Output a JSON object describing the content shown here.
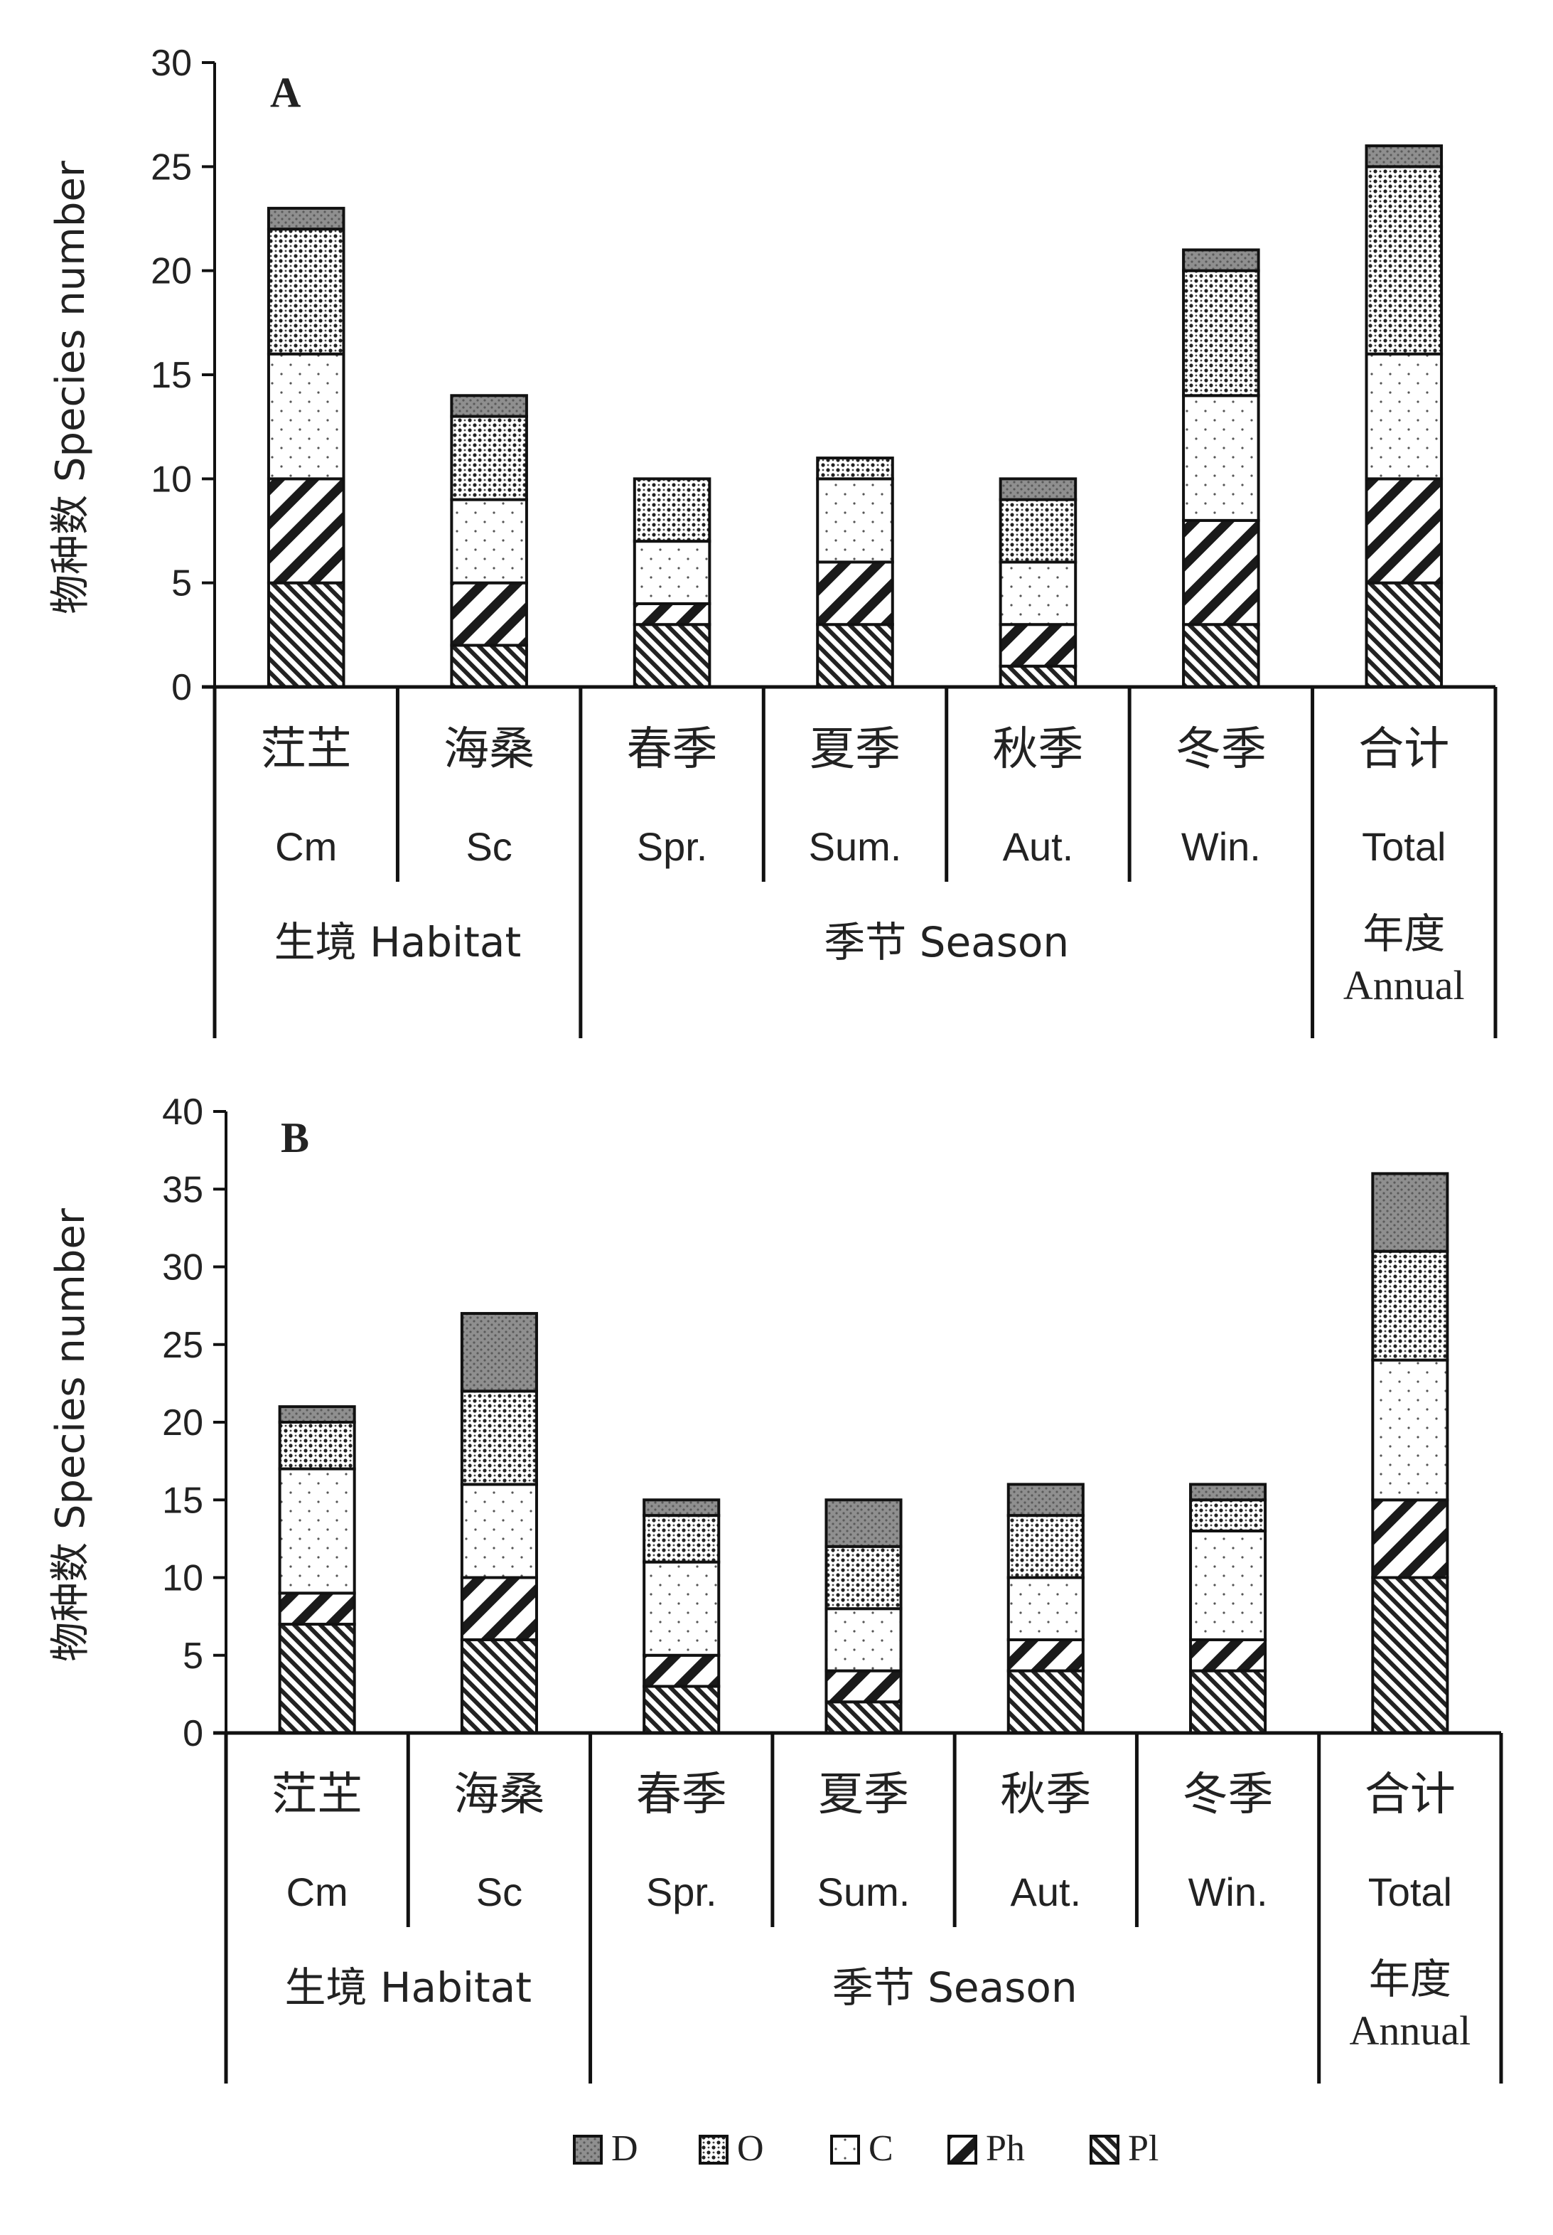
{
  "chart_data": [
    {
      "panel": "A",
      "type": "bar",
      "stacked": true,
      "ylabel": "物种数 Species number",
      "ylim": [
        0,
        30
      ],
      "yticks": [
        0,
        5,
        10,
        15,
        20,
        25,
        30
      ],
      "categories": [
        "茳芏",
        "海桑",
        "春季",
        "夏季",
        "秋季",
        "冬季",
        "合计"
      ],
      "categories_en": [
        "Cm",
        "Sc",
        "Spr.",
        "Sum.",
        "Aut.",
        "Win.",
        "Total"
      ],
      "groups": [
        {
          "label": "生境 Habitat",
          "count": 2
        },
        {
          "label": "季节 Season",
          "count": 4
        },
        {
          "label_cn": "年度",
          "label_en": "Annual",
          "count": 1
        }
      ],
      "series": [
        {
          "name": "Pl",
          "values": [
            5,
            2,
            3,
            3,
            1,
            3,
            5
          ]
        },
        {
          "name": "Ph",
          "values": [
            5,
            3,
            1,
            3,
            2,
            5,
            5
          ]
        },
        {
          "name": "C",
          "values": [
            6,
            4,
            3,
            4,
            3,
            6,
            6
          ]
        },
        {
          "name": "O",
          "values": [
            6,
            4,
            3,
            1,
            3,
            6,
            9
          ]
        },
        {
          "name": "D",
          "values": [
            1,
            1,
            0,
            0,
            1,
            1,
            1
          ]
        }
      ]
    },
    {
      "panel": "B",
      "type": "bar",
      "stacked": true,
      "ylabel": "物种数 Species number",
      "ylim": [
        0,
        40
      ],
      "yticks": [
        0,
        5,
        10,
        15,
        20,
        25,
        30,
        35,
        40
      ],
      "categories": [
        "茳芏",
        "海桑",
        "春季",
        "夏季",
        "秋季",
        "冬季",
        "合计"
      ],
      "categories_en": [
        "Cm",
        "Sc",
        "Spr.",
        "Sum.",
        "Aut.",
        "Win.",
        "Total"
      ],
      "groups": [
        {
          "label": "生境 Habitat",
          "count": 2
        },
        {
          "label": "季节 Season",
          "count": 4
        },
        {
          "label_cn": "年度",
          "label_en": "Annual",
          "count": 1
        }
      ],
      "series": [
        {
          "name": "Pl",
          "values": [
            7,
            6,
            3,
            2,
            4,
            4,
            10
          ]
        },
        {
          "name": "Ph",
          "values": [
            2,
            4,
            2,
            2,
            2,
            2,
            5
          ]
        },
        {
          "name": "C",
          "values": [
            8,
            6,
            6,
            4,
            4,
            7,
            9
          ]
        },
        {
          "name": "O",
          "values": [
            3,
            6,
            3,
            4,
            4,
            2,
            7
          ]
        },
        {
          "name": "D",
          "values": [
            1,
            5,
            1,
            3,
            2,
            1,
            5
          ]
        }
      ]
    }
  ],
  "legend": {
    "placement": "bottom",
    "items": [
      {
        "name": "D",
        "pattern": "dark"
      },
      {
        "name": "O",
        "pattern": "dots-dense"
      },
      {
        "name": "C",
        "pattern": "dots-sparse"
      },
      {
        "name": "Ph",
        "pattern": "diagonal-wide"
      },
      {
        "name": "Pl",
        "pattern": "diagonal-fine"
      }
    ]
  },
  "colors": {
    "ink": "#111111",
    "dark_fill": "#8c8c8c",
    "bg": "#ffffff"
  }
}
